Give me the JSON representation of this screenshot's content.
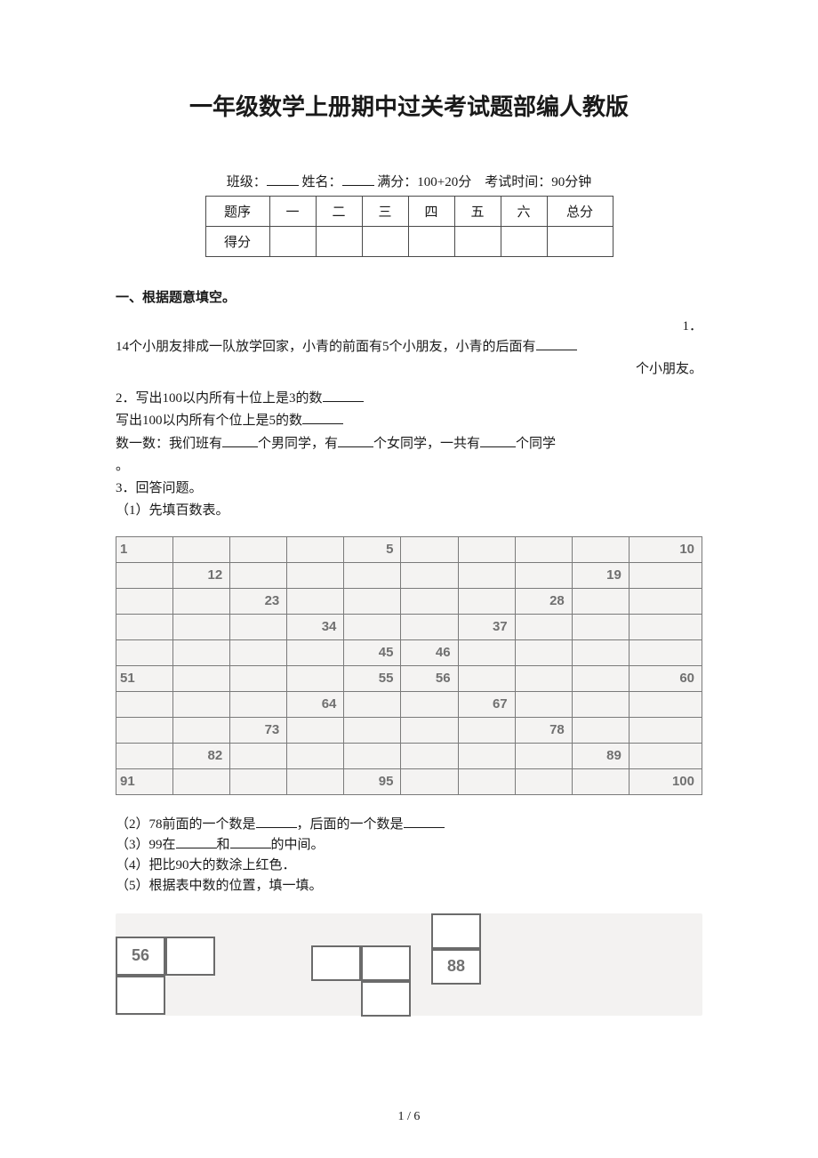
{
  "title": "一年级数学上册期中过关考试题部编人教版",
  "header": {
    "class_label": "班级：",
    "name_label": "姓名：",
    "full_label": "满分：",
    "full_value": "100+20分",
    "time_label": "考试时间：",
    "time_value": "90分钟"
  },
  "score_table": {
    "row_header_seq": "题序",
    "row_header_score": "得分",
    "cols": [
      "一",
      "二",
      "三",
      "四",
      "五",
      "六"
    ],
    "total": "总分"
  },
  "section1": {
    "heading": "一、根据题意填空。",
    "q1_num": "1．",
    "q1_line1": "14个小朋友排成一队放学回家，小青的前面有5个小朋友，小青的后面有",
    "q1_line2": "个小朋友。",
    "q2_prefix": "2．写出100以内所有十位上是3的数",
    "q2_line2": "写出100以内所有个位上是5的数",
    "q2_line3a": "数一数：我们班有",
    "q2_line3b": "个男同学，有",
    "q2_line3c": "个女同学，一共有",
    "q2_line3d": "个同学",
    "q2_period": "。",
    "q3_head": "3．回答问题。",
    "q3_sub1": "（1）先填百数表。",
    "hundred_table": {
      "cells": [
        [
          "1",
          "",
          "",
          "",
          "5",
          "",
          "",
          "",
          "",
          "10"
        ],
        [
          "",
          "12",
          "",
          "",
          "",
          "",
          "",
          "",
          "19",
          ""
        ],
        [
          "",
          "",
          "23",
          "",
          "",
          "",
          "",
          "28",
          "",
          ""
        ],
        [
          "",
          "",
          "",
          "34",
          "",
          "",
          "37",
          "",
          "",
          ""
        ],
        [
          "",
          "",
          "",
          "",
          "45",
          "46",
          "",
          "",
          "",
          ""
        ],
        [
          "51",
          "",
          "",
          "",
          "55",
          "56",
          "",
          "",
          "",
          "60"
        ],
        [
          "",
          "",
          "",
          "64",
          "",
          "",
          "67",
          "",
          "",
          ""
        ],
        [
          "",
          "",
          "73",
          "",
          "",
          "",
          "",
          "78",
          "",
          ""
        ],
        [
          "",
          "82",
          "",
          "",
          "",
          "",
          "",
          "",
          "89",
          ""
        ],
        [
          "91",
          "",
          "",
          "",
          "95",
          "",
          "",
          "",
          "",
          "100"
        ]
      ],
      "background_color": "#f4f3f2",
      "border_color": "#7a7a7a",
      "text_color": "#707070"
    },
    "q3_sub2a": "（2）78前面的一个数是",
    "q3_sub2b": "，后面的一个数是",
    "q3_sub3a": "（3）99在",
    "q3_sub3b": "和",
    "q3_sub3c": "的中间。",
    "q3_sub4": "（4）把比90大的数涂上红色．",
    "q3_sub5": "（5）根据表中数的位置，填一填。",
    "boxes": {
      "box56": "56",
      "box88": "88"
    }
  },
  "page_foot": "1 / 6"
}
